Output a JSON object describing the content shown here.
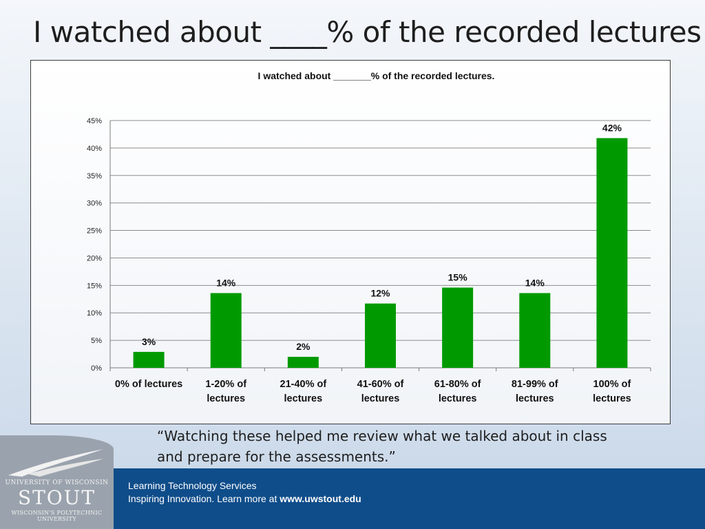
{
  "slide": {
    "title": "I watched about ____% of the recorded lectures",
    "quote_line1": "“Watching these helped me review what we talked about in class",
    "quote_line2": "and prepare for the assessments.”"
  },
  "footer": {
    "line1": "Learning Technology Services",
    "line2_prefix": "Inspiring Innovation.  Learn more at ",
    "line2_link": "www.uwstout.edu"
  },
  "logo": {
    "line1": "UNIVERSITY OF WISCONSIN",
    "line2": "STOUT",
    "line3": "WISCONSIN'S POLYTECHNIC UNIVERSITY"
  },
  "colors": {
    "bar": "#009a00",
    "footer_band": "#0f4d8a",
    "gridline": "#8c8c8c"
  },
  "chart_data": {
    "type": "bar",
    "title": "I watched about _______% of the recorded lectures.",
    "categories": [
      [
        "0% of lectures"
      ],
      [
        "1-20% of",
        "lectures"
      ],
      [
        "21-40% of",
        "lectures"
      ],
      [
        "41-60% of",
        "lectures"
      ],
      [
        "61-80% of",
        "lectures"
      ],
      [
        "81-99% of",
        "lectures"
      ],
      [
        "100% of",
        "lectures"
      ]
    ],
    "values": [
      2.9,
      13.6,
      2.0,
      11.7,
      14.6,
      13.6,
      41.8
    ],
    "data_labels": [
      "3%",
      "14%",
      "2%",
      "12%",
      "15%",
      "14%",
      "42%"
    ],
    "ylim": [
      0,
      45
    ],
    "yticks": [
      0,
      5,
      10,
      15,
      20,
      25,
      30,
      35,
      40,
      45
    ],
    "ytick_labels": [
      "0%",
      "5%",
      "10%",
      "15%",
      "20%",
      "25%",
      "30%",
      "35%",
      "40%",
      "45%"
    ],
    "grid": true,
    "legend": "none"
  }
}
